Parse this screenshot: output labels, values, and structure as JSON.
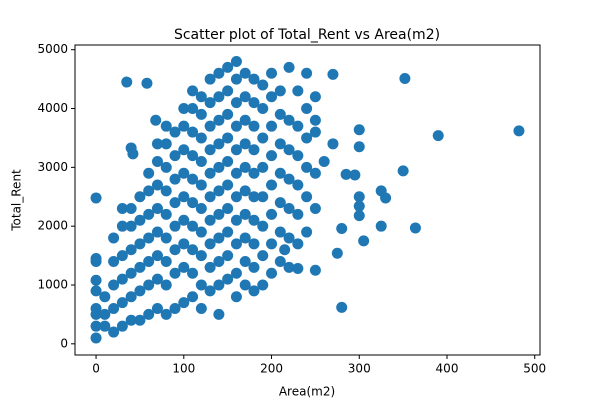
{
  "chart_data": {
    "type": "scatter",
    "title": "Scatter plot of Total_Rent vs Area(m2)",
    "x_label": "Area(m2)",
    "y_label": "Total_Rent",
    "color": "#1f77b4",
    "xlim": [
      -24,
      506
    ],
    "ylim": [
      -190,
      5080
    ],
    "xticks": [
      0,
      100,
      200,
      300,
      400,
      500
    ],
    "yticks": [
      0,
      1000,
      2000,
      3000,
      4000,
      5000
    ],
    "x": [
      0,
      35,
      58,
      40,
      42,
      68,
      482,
      390,
      352,
      350,
      364,
      330,
      325,
      305,
      280,
      300,
      300,
      300,
      300,
      300,
      325,
      295,
      285,
      270,
      275,
      280,
      0,
      0,
      0,
      0,
      0,
      0,
      0,
      0,
      270,
      260,
      250,
      250,
      230,
      215,
      10,
      10,
      10,
      20,
      20,
      20,
      20,
      20,
      30,
      30,
      30,
      30,
      30,
      30,
      40,
      40,
      40,
      40,
      40,
      40,
      50,
      50,
      50,
      50,
      50,
      50,
      60,
      60,
      60,
      60,
      60,
      60,
      60,
      70,
      70,
      70,
      70,
      70,
      70,
      70,
      70,
      80,
      80,
      80,
      80,
      80,
      80,
      80,
      80,
      80,
      90,
      90,
      90,
      90,
      90,
      90,
      90,
      90,
      100,
      100,
      100,
      100,
      100,
      100,
      100,
      100,
      100,
      110,
      110,
      110,
      110,
      110,
      110,
      110,
      110,
      110,
      110,
      120,
      120,
      120,
      120,
      120,
      120,
      120,
      120,
      120,
      120,
      130,
      130,
      130,
      130,
      130,
      130,
      130,
      130,
      130,
      130,
      140,
      140,
      140,
      140,
      140,
      140,
      140,
      140,
      140,
      140,
      140,
      150,
      150,
      150,
      150,
      150,
      150,
      150,
      150,
      150,
      150,
      160,
      160,
      160,
      160,
      160,
      160,
      160,
      160,
      160,
      160,
      160,
      170,
      170,
      170,
      170,
      170,
      170,
      170,
      170,
      170,
      170,
      180,
      180,
      180,
      180,
      180,
      180,
      180,
      180,
      180,
      180,
      190,
      190,
      190,
      190,
      190,
      190,
      190,
      190,
      200,
      200,
      200,
      200,
      200,
      200,
      200,
      200,
      210,
      210,
      210,
      210,
      210,
      210,
      210,
      220,
      220,
      220,
      220,
      220,
      220,
      220,
      230,
      230,
      230,
      230,
      230,
      230,
      240,
      240,
      240,
      240,
      240,
      240,
      250,
      250,
      250,
      250
    ],
    "values": [
      2480,
      4450,
      4430,
      3330,
      3230,
      3800,
      3620,
      3540,
      4510,
      2940,
      1970,
      2480,
      2600,
      1750,
      620,
      3640,
      3350,
      2500,
      2340,
      2180,
      2000,
      2870,
      2880,
      4580,
      1540,
      1960,
      1450,
      1400,
      1080,
      900,
      600,
      500,
      100,
      300,
      3400,
      3100,
      3800,
      1250,
      1280,
      1600,
      300,
      500,
      800,
      200,
      600,
      1000,
      1400,
      1800,
      300,
      700,
      1100,
      1500,
      2000,
      2300,
      400,
      800,
      1200,
      1600,
      2000,
      2300,
      400,
      900,
      1300,
      1700,
      2100,
      2500,
      500,
      1000,
      1400,
      1800,
      2200,
      2600,
      2900,
      600,
      1100,
      1500,
      1900,
      2300,
      2700,
      3100,
      3400,
      500,
      1000,
      1400,
      1800,
      2200,
      2600,
      3000,
      3400,
      3700,
      600,
      1200,
      1600,
      2000,
      2400,
      2800,
      3200,
      3600,
      700,
      1300,
      1700,
      2100,
      2500,
      2900,
      3300,
      3700,
      4000,
      800,
      1200,
      1600,
      2000,
      2400,
      2800,
      3200,
      3600,
      4000,
      4300,
      600,
      1000,
      1500,
      1900,
      2300,
      2700,
      3100,
      3500,
      3900,
      4200,
      900,
      1300,
      1700,
      2100,
      2500,
      2900,
      3300,
      3700,
      4100,
      4500,
      500,
      1000,
      1400,
      1800,
      2200,
      2600,
      3000,
      3400,
      3800,
      4200,
      4600,
      1100,
      1500,
      1900,
      2300,
      2700,
      3100,
      3500,
      3900,
      4300,
      4700,
      800,
      1200,
      1700,
      2100,
      2500,
      2900,
      3300,
      3700,
      4100,
      4500,
      4800,
      1000,
      1400,
      1800,
      2200,
      2600,
      3000,
      3400,
      3800,
      4200,
      4600,
      900,
      1300,
      1700,
      2100,
      2500,
      2900,
      3300,
      3700,
      4100,
      4500,
      1000,
      1500,
      2000,
      2500,
      3000,
      3500,
      4000,
      4400,
      1200,
      1700,
      2200,
      2700,
      3200,
      3700,
      4200,
      4600,
      1400,
      1900,
      2400,
      2900,
      3400,
      3900,
      4300,
      1300,
      1800,
      2300,
      2800,
      3300,
      3800,
      4700,
      1700,
      2200,
      2700,
      3200,
      3700,
      4300,
      1900,
      2500,
      3000,
      3500,
      4000,
      4600,
      2300,
      2900,
      3600,
      4200
    ]
  }
}
